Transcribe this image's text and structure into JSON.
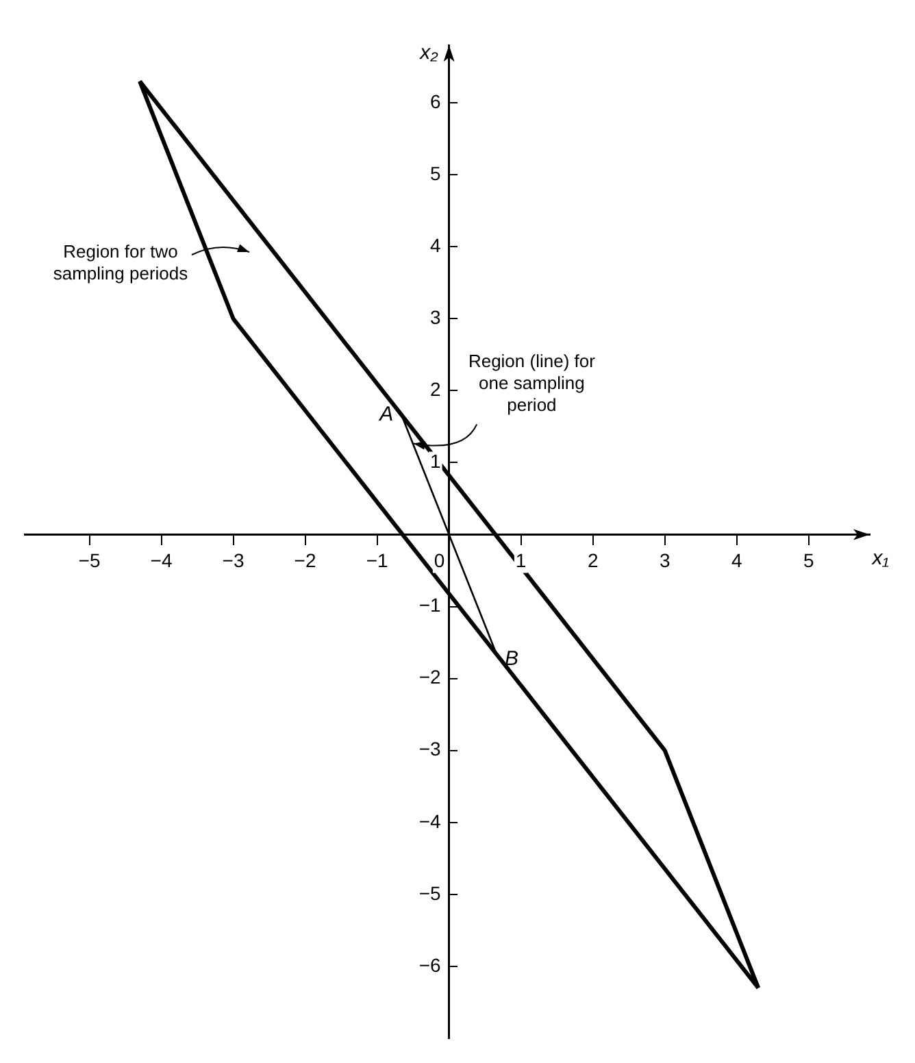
{
  "chart_data": {
    "type": "line",
    "xlabel": "x₁",
    "ylabel": "x₂",
    "xlim": [
      -5.9,
      5.85
    ],
    "ylim": [
      -7,
      6.8
    ],
    "xticks": [
      -5,
      -4,
      -3,
      -2,
      -1,
      0,
      1,
      2,
      3,
      4,
      5
    ],
    "yticks": [
      -6,
      -5,
      -4,
      -3,
      -2,
      -1,
      1,
      2,
      3,
      4,
      5,
      6
    ],
    "grid": false,
    "legend": false,
    "marker": "none",
    "line_style": "solid",
    "series": [
      {
        "color": "#000000",
        "x": [
          -4.3,
          3,
          4.3
        ],
        "values": [
          6.3,
          -3,
          -6.3
        ]
      },
      {
        "color": "#000000",
        "x": [
          -4.3,
          -3,
          4.3
        ],
        "values": [
          6.3,
          3,
          -6.3
        ]
      },
      {
        "color": "#000000",
        "x": [
          -0.66,
          0.66
        ],
        "values": [
          1.66,
          -1.66
        ]
      }
    ],
    "annotations": [
      "Region for two sampling periods",
      "Region (line) for one sampling period",
      {
        "text": "A",
        "x": -0.66,
        "y": 1.66
      },
      {
        "text": "B",
        "x": 0.66,
        "y": -1.66
      }
    ]
  }
}
